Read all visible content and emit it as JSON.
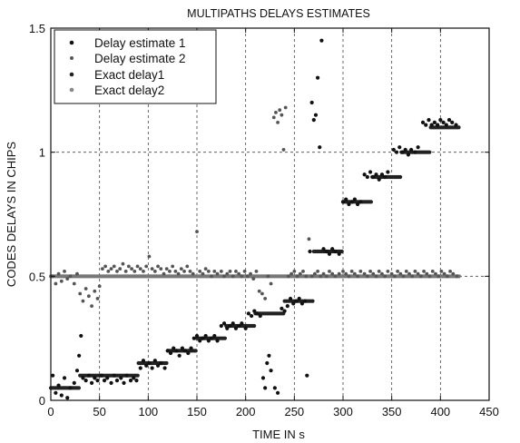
{
  "chart_data": {
    "type": "scatter",
    "title": "MULTIPATHS DELAYS ESTIMATES",
    "xlabel": "TIME IN  s",
    "ylabel": "CODES DELAYS IN CHIPS",
    "xlim": [
      0,
      450
    ],
    "ylim": [
      0,
      1.5
    ],
    "xticks": [
      0,
      50,
      100,
      150,
      200,
      250,
      300,
      350,
      400,
      450
    ],
    "yticks": [
      0,
      0.5,
      1,
      1.5
    ],
    "xtick_labels": [
      "0",
      "50",
      "100",
      "150",
      "200",
      "250",
      "300",
      "350",
      "400",
      "450"
    ],
    "ytick_labels": [
      "0",
      "0.5",
      "1",
      "1.5"
    ],
    "grid": true,
    "legend_position": "top-left",
    "series": [
      {
        "name": "Delay estimate 1",
        "color": "#111111",
        "points": [
          [
            2,
            0.1
          ],
          [
            5,
            0.03
          ],
          [
            8,
            0.06
          ],
          [
            11,
            0.02
          ],
          [
            14,
            0.09
          ],
          [
            17,
            0.01
          ],
          [
            20,
            0.05
          ],
          [
            24,
            0.07
          ],
          [
            27,
            0.12
          ],
          [
            29,
            0.18
          ],
          [
            31,
            0.26
          ],
          [
            33,
            0.09
          ],
          [
            36,
            0.08
          ],
          [
            39,
            0.1
          ],
          [
            42,
            0.07
          ],
          [
            45,
            0.09
          ],
          [
            48,
            0.08
          ],
          [
            52,
            0.1
          ],
          [
            55,
            0.08
          ],
          [
            58,
            0.09
          ],
          [
            62,
            0.07
          ],
          [
            65,
            0.1
          ],
          [
            68,
            0.08
          ],
          [
            72,
            0.09
          ],
          [
            75,
            0.07
          ],
          [
            78,
            0.1
          ],
          [
            82,
            0.08
          ],
          [
            85,
            0.09
          ],
          [
            88,
            0.08
          ],
          [
            92,
            0.13
          ],
          [
            95,
            0.16
          ],
          [
            98,
            0.14
          ],
          [
            101,
            0.15
          ],
          [
            104,
            0.13
          ],
          [
            107,
            0.16
          ],
          [
            110,
            0.14
          ],
          [
            113,
            0.15
          ],
          [
            117,
            0.13
          ],
          [
            120,
            0.2
          ],
          [
            123,
            0.19
          ],
          [
            126,
            0.21
          ],
          [
            129,
            0.2
          ],
          [
            132,
            0.18
          ],
          [
            135,
            0.21
          ],
          [
            138,
            0.2
          ],
          [
            141,
            0.19
          ],
          [
            144,
            0.21
          ],
          [
            147,
            0.25
          ],
          [
            150,
            0.26
          ],
          [
            153,
            0.24
          ],
          [
            156,
            0.25
          ],
          [
            159,
            0.26
          ],
          [
            162,
            0.24
          ],
          [
            165,
            0.25
          ],
          [
            168,
            0.26
          ],
          [
            171,
            0.24
          ],
          [
            175,
            0.3
          ],
          [
            178,
            0.31
          ],
          [
            181,
            0.29
          ],
          [
            184,
            0.3
          ],
          [
            187,
            0.31
          ],
          [
            190,
            0.29
          ],
          [
            193,
            0.3
          ],
          [
            196,
            0.31
          ],
          [
            200,
            0.29
          ],
          [
            203,
            0.35
          ],
          [
            206,
            0.34
          ],
          [
            209,
            0.36
          ],
          [
            212,
            0.35
          ],
          [
            215,
            0.34
          ],
          [
            218,
            0.09
          ],
          [
            220,
            0.05
          ],
          [
            222,
            0.15
          ],
          [
            224,
            0.18
          ],
          [
            226,
            0.12
          ],
          [
            230,
            0.05
          ],
          [
            233,
            0.03
          ],
          [
            237,
            0.37
          ],
          [
            240,
            0.36
          ],
          [
            243,
            0.38
          ],
          [
            246,
            0.41
          ],
          [
            249,
            0.39
          ],
          [
            252,
            0.4
          ],
          [
            255,
            0.41
          ],
          [
            258,
            0.39
          ],
          [
            261,
            0.4
          ],
          [
            263,
            0.1
          ],
          [
            266,
            0.6
          ],
          [
            268,
            1.2
          ],
          [
            270,
            1.13
          ],
          [
            272,
            1.15
          ],
          [
            274,
            1.3
          ],
          [
            276,
            1.02
          ],
          [
            278,
            1.45
          ],
          [
            280,
            0.61
          ],
          [
            283,
            0.6
          ],
          [
            286,
            0.59
          ],
          [
            289,
            0.61
          ],
          [
            292,
            0.6
          ],
          [
            296,
            0.59
          ],
          [
            300,
            0.8
          ],
          [
            303,
            0.81
          ],
          [
            306,
            0.79
          ],
          [
            309,
            0.8
          ],
          [
            312,
            0.81
          ],
          [
            315,
            0.79
          ],
          [
            318,
            0.8
          ],
          [
            322,
            0.91
          ],
          [
            325,
            0.9
          ],
          [
            328,
            0.92
          ],
          [
            331,
            0.9
          ],
          [
            334,
            0.91
          ],
          [
            337,
            0.89
          ],
          [
            340,
            0.91
          ],
          [
            343,
            0.9
          ],
          [
            346,
            0.92
          ],
          [
            352,
            1.01
          ],
          [
            355,
            1.0
          ],
          [
            358,
            1.02
          ],
          [
            361,
            1.0
          ],
          [
            364,
            1.01
          ],
          [
            367,
            0.99
          ],
          [
            370,
            1.01
          ],
          [
            374,
            1.0
          ],
          [
            377,
            1.02
          ],
          [
            382,
            1.12
          ],
          [
            385,
            1.11
          ],
          [
            388,
            1.13
          ],
          [
            391,
            1.11
          ],
          [
            394,
            1.12
          ],
          [
            397,
            1.11
          ],
          [
            400,
            1.13
          ],
          [
            403,
            1.12
          ],
          [
            406,
            1.11
          ],
          [
            409,
            1.13
          ],
          [
            412,
            1.12
          ],
          [
            416,
            1.11
          ]
        ]
      },
      {
        "name": "Delay estimate 2",
        "color": "#555555",
        "points": [
          [
            2,
            0.5
          ],
          [
            5,
            0.47
          ],
          [
            8,
            0.51
          ],
          [
            11,
            0.48
          ],
          [
            14,
            0.52
          ],
          [
            17,
            0.49
          ],
          [
            20,
            0.5
          ],
          [
            24,
            0.47
          ],
          [
            27,
            0.51
          ],
          [
            30,
            0.43
          ],
          [
            33,
            0.4
          ],
          [
            36,
            0.45
          ],
          [
            39,
            0.42
          ],
          [
            42,
            0.38
          ],
          [
            45,
            0.44
          ],
          [
            48,
            0.41
          ],
          [
            50,
            0.46
          ],
          [
            53,
            0.53
          ],
          [
            56,
            0.54
          ],
          [
            59,
            0.52
          ],
          [
            62,
            0.53
          ],
          [
            65,
            0.54
          ],
          [
            68,
            0.52
          ],
          [
            71,
            0.53
          ],
          [
            74,
            0.55
          ],
          [
            77,
            0.52
          ],
          [
            80,
            0.54
          ],
          [
            83,
            0.53
          ],
          [
            86,
            0.52
          ],
          [
            89,
            0.54
          ],
          [
            92,
            0.53
          ],
          [
            95,
            0.52
          ],
          [
            98,
            0.54
          ],
          [
            101,
            0.58
          ],
          [
            104,
            0.53
          ],
          [
            107,
            0.52
          ],
          [
            110,
            0.54
          ],
          [
            113,
            0.53
          ],
          [
            116,
            0.51
          ],
          [
            119,
            0.53
          ],
          [
            122,
            0.52
          ],
          [
            125,
            0.54
          ],
          [
            128,
            0.52
          ],
          [
            131,
            0.51
          ],
          [
            134,
            0.53
          ],
          [
            137,
            0.52
          ],
          [
            140,
            0.54
          ],
          [
            143,
            0.52
          ],
          [
            146,
            0.51
          ],
          [
            150,
            0.68
          ],
          [
            153,
            0.52
          ],
          [
            156,
            0.51
          ],
          [
            159,
            0.53
          ],
          [
            162,
            0.52
          ],
          [
            165,
            0.5
          ],
          [
            168,
            0.52
          ],
          [
            171,
            0.51
          ],
          [
            175,
            0.52
          ],
          [
            178,
            0.5
          ],
          [
            181,
            0.51
          ],
          [
            184,
            0.52
          ],
          [
            187,
            0.5
          ],
          [
            190,
            0.52
          ],
          [
            193,
            0.51
          ],
          [
            196,
            0.5
          ],
          [
            199,
            0.52
          ],
          [
            202,
            0.5
          ],
          [
            205,
            0.51
          ],
          [
            208,
            0.49
          ],
          [
            211,
            0.52
          ],
          [
            214,
            0.44
          ],
          [
            217,
            0.43
          ],
          [
            220,
            0.41
          ],
          [
            223,
            0.5
          ],
          [
            226,
            0.47
          ],
          [
            229,
            1.14
          ],
          [
            231,
            1.16
          ],
          [
            233,
            1.12
          ],
          [
            235,
            1.17
          ],
          [
            237,
            1.15
          ],
          [
            239,
            1.01
          ],
          [
            241,
            1.18
          ],
          [
            244,
            0.5
          ],
          [
            247,
            0.51
          ],
          [
            250,
            0.52
          ],
          [
            253,
            0.5
          ],
          [
            256,
            0.51
          ],
          [
            259,
            0.52
          ],
          [
            262,
            0.5
          ],
          [
            265,
            0.65
          ],
          [
            268,
            0.5
          ],
          [
            271,
            0.51
          ],
          [
            274,
            0.52
          ],
          [
            277,
            0.5
          ],
          [
            280,
            0.51
          ],
          [
            283,
            0.5
          ],
          [
            286,
            0.52
          ],
          [
            289,
            0.51
          ],
          [
            292,
            0.5
          ],
          [
            296,
            0.51
          ],
          [
            300,
            0.52
          ],
          [
            303,
            0.51
          ],
          [
            306,
            0.5
          ],
          [
            309,
            0.52
          ],
          [
            312,
            0.51
          ],
          [
            315,
            0.5
          ],
          [
            318,
            0.52
          ],
          [
            322,
            0.51
          ],
          [
            325,
            0.5
          ],
          [
            328,
            0.52
          ],
          [
            331,
            0.51
          ],
          [
            334,
            0.5
          ],
          [
            337,
            0.52
          ],
          [
            340,
            0.51
          ],
          [
            343,
            0.5
          ],
          [
            346,
            0.52
          ],
          [
            350,
            0.51
          ],
          [
            353,
            0.5
          ],
          [
            356,
            0.52
          ],
          [
            359,
            0.51
          ],
          [
            362,
            0.5
          ],
          [
            365,
            0.52
          ],
          [
            368,
            0.51
          ],
          [
            371,
            0.5
          ],
          [
            374,
            0.52
          ],
          [
            377,
            0.51
          ],
          [
            380,
            0.5
          ],
          [
            383,
            0.52
          ],
          [
            386,
            0.51
          ],
          [
            389,
            0.5
          ],
          [
            392,
            0.52
          ],
          [
            395,
            0.51
          ],
          [
            398,
            0.5
          ],
          [
            401,
            0.52
          ],
          [
            404,
            0.51
          ],
          [
            407,
            0.5
          ],
          [
            410,
            0.52
          ],
          [
            413,
            0.51
          ],
          [
            417,
            0.5
          ]
        ]
      },
      {
        "name": "Exact delay1",
        "color": "#222222",
        "steps": [
          [
            0,
            30,
            0.05
          ],
          [
            30,
            90,
            0.1
          ],
          [
            90,
            120,
            0.15
          ],
          [
            120,
            150,
            0.2
          ],
          [
            150,
            180,
            0.25
          ],
          [
            180,
            210,
            0.3
          ],
          [
            210,
            240,
            0.35
          ],
          [
            240,
            270,
            0.4
          ],
          [
            270,
            300,
            0.6
          ],
          [
            300,
            330,
            0.8
          ],
          [
            330,
            360,
            0.9
          ],
          [
            360,
            390,
            1.0
          ],
          [
            390,
            420,
            1.1
          ]
        ]
      },
      {
        "name": "Exact delay2",
        "color": "#777777",
        "steps": [
          [
            0,
            420,
            0.5
          ]
        ]
      }
    ]
  }
}
